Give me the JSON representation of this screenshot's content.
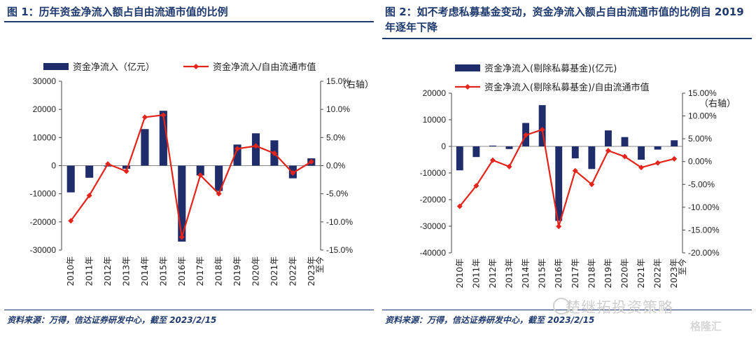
{
  "left": {
    "title": "图 1：历年资金净流入额占自由流通市值的比例",
    "source": "资料来源：万得，信达证券研发中心，截至 2023/2/15",
    "chart_data": {
      "type": "bar+line",
      "categories": [
        "2010-年",
        "2011-年",
        "2012-年",
        "2013-年",
        "2014-年",
        "2015-年",
        "2016-年",
        "2017-年",
        "2018-年",
        "2019-年",
        "2020-年",
        "2021-年",
        "2022-年",
        "2023-年至今"
      ],
      "x_tick_labels": [
        "2010年",
        "2011年",
        "2012年",
        "2013年",
        "2014年",
        "2015年",
        "2016年",
        "2017年",
        "2018年",
        "2019年",
        "2020年",
        "2021年",
        "2022年",
        "2023年",
        "至今"
      ],
      "series": [
        {
          "name": "资金净流入（亿元）",
          "type": "bar",
          "axis": "left",
          "color": "#1f2d6b",
          "values": [
            -9500,
            -4300,
            -300,
            -1100,
            13000,
            19500,
            -27000,
            -3500,
            -9000,
            7500,
            11500,
            9000,
            -4500,
            2600
          ]
        },
        {
          "name": "资金净流入/自由流通市值",
          "type": "line",
          "axis": "right",
          "color": "#e3241b",
          "values": [
            -9.8,
            -5.3,
            0.3,
            -1.0,
            8.6,
            9.0,
            -12.7,
            -1.7,
            -5.0,
            3.0,
            3.5,
            2.2,
            -1.3,
            0.7
          ]
        }
      ],
      "y_left": {
        "min": -30000,
        "max": 30000,
        "ticks": [
          -30000,
          -20000,
          -10000,
          0,
          10000,
          20000,
          30000
        ],
        "tick_labels": [
          "-30000",
          "-20000",
          "-10000",
          "0",
          "10000",
          "20000",
          "30000"
        ]
      },
      "y_right": {
        "min": -15,
        "max": 15,
        "ticks": [
          -15,
          -10,
          -5,
          0,
          5,
          10,
          15
        ],
        "tick_labels": [
          "-15.0%",
          "-10.0%",
          "-5.0%",
          "0.0%",
          "5.0%",
          "10.0%",
          "15.0%"
        ],
        "label": "（右轴）"
      },
      "legend_position": "top"
    }
  },
  "right": {
    "title": "图 2：如不考虑私募基金变动，资金净流入额占自由流通市值的比例自 2019 年逐年下降",
    "source": "资料来源：万得，信达证券研发中心，截至 2023/2/15",
    "chart_data": {
      "type": "bar+line",
      "categories": [
        "2010-年",
        "2011-年",
        "2012-年",
        "2013-年",
        "2014-年",
        "2015-年",
        "2016-年",
        "2017-年",
        "2018-年",
        "2019-年",
        "2020-年",
        "2021-年",
        "2022-年",
        "2023-年至今"
      ],
      "x_tick_labels": [
        "2010年",
        "2011年",
        "2012年",
        "2013年",
        "2014年",
        "2015年",
        "2016年",
        "2017年",
        "2018年",
        "2019年",
        "2020年",
        "2021年",
        "2022年",
        "2023年",
        "至今"
      ],
      "series": [
        {
          "name": "资金净流入(剔除私募基金)(亿元)",
          "type": "bar",
          "axis": "left",
          "color": "#1f2d6b",
          "values": [
            -9000,
            -4000,
            300,
            -1000,
            8800,
            15500,
            -28000,
            -4500,
            -8500,
            6000,
            3500,
            -5000,
            -1200,
            2300
          ]
        },
        {
          "name": "资金净流入(剔除私募基金)/自由流通市值",
          "type": "line",
          "axis": "right",
          "color": "#e3241b",
          "values": [
            -9.8,
            -5.3,
            0.3,
            -1.1,
            5.8,
            7.0,
            -14.2,
            -2.0,
            -5.0,
            2.4,
            1.1,
            -1.3,
            -0.3,
            0.6
          ]
        }
      ],
      "y_left": {
        "min": -40000,
        "max": 20000,
        "ticks": [
          -40000,
          -30000,
          -20000,
          -10000,
          0,
          10000,
          20000
        ],
        "tick_labels": [
          "-40000",
          "-30000",
          "-20000",
          "-10000",
          "0",
          "10000",
          "20000"
        ]
      },
      "y_right": {
        "min": -20,
        "max": 15,
        "ticks": [
          -20,
          -15,
          -10,
          -5,
          0,
          5,
          10,
          15
        ],
        "tick_labels": [
          "-20.00%",
          "-15.00%",
          "-10.00%",
          "-5.00%",
          "0.00%",
          "5.00%",
          "10.00%",
          "15.00%"
        ],
        "label": "（右轴）"
      },
      "legend_position": "top"
    }
  },
  "watermark": {
    "text": "楚继拓投资策略",
    "brand": "格隆汇"
  }
}
